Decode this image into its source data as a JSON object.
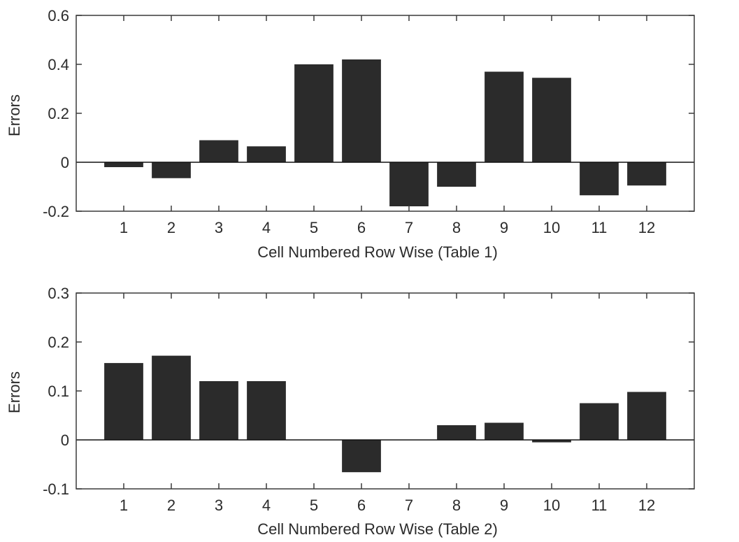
{
  "colors": {
    "bar": "#2b2b2b",
    "axis": "#3a3a3a",
    "text": "#2b2b2b",
    "background": "#ffffff"
  },
  "chart_data": [
    {
      "type": "bar",
      "categories": [
        "1",
        "2",
        "3",
        "4",
        "5",
        "6",
        "7",
        "8",
        "9",
        "10",
        "11",
        "12"
      ],
      "values": [
        -0.02,
        -0.065,
        0.09,
        0.065,
        0.4,
        0.42,
        -0.18,
        -0.1,
        0.37,
        0.345,
        -0.135,
        -0.095
      ],
      "title": "",
      "xlabel": "Cell Numbered Row Wise (Table 1)",
      "ylabel": "Errors",
      "ylim": [
        -0.2,
        0.6
      ],
      "yticks": [
        "-0.2",
        "0",
        "0.2",
        "0.4",
        "0.6"
      ],
      "grid": false
    },
    {
      "type": "bar",
      "categories": [
        "1",
        "2",
        "3",
        "4",
        "5",
        "6",
        "7",
        "8",
        "9",
        "10",
        "11",
        "12"
      ],
      "values": [
        0.157,
        0.172,
        0.12,
        0.12,
        0.0,
        -0.066,
        0.0,
        0.03,
        0.035,
        -0.005,
        0.075,
        0.098
      ],
      "title": "",
      "xlabel": "Cell Numbered Row Wise (Table 2)",
      "ylabel": "Errors",
      "ylim": [
        -0.1,
        0.3
      ],
      "yticks": [
        "-0.1",
        "0",
        "0.1",
        "0.2",
        "0.3"
      ],
      "grid": false
    }
  ]
}
